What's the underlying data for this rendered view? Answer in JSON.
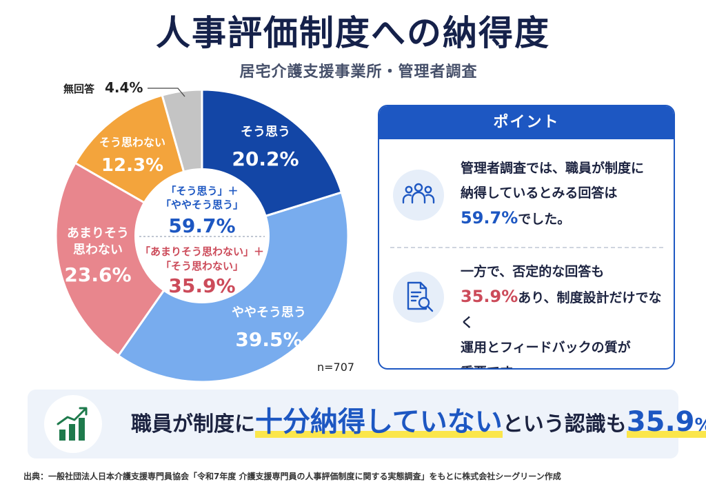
{
  "header": {
    "title": "人事評価制度への納得度",
    "subtitle": "居宅介護支援事業所・管理者調査"
  },
  "chart_data": {
    "type": "pie",
    "sample_label": "n=707",
    "series": [
      {
        "name": "そう思う",
        "value": 20.2,
        "label": "20.2%",
        "color": "#1346a6"
      },
      {
        "name": "ややそう思う",
        "value": 39.5,
        "label": "39.5%",
        "color": "#78acee"
      },
      {
        "name": "あまりそう思わない",
        "value": 23.6,
        "label": "23.6%",
        "color": "#e8868d"
      },
      {
        "name": "そう思わない",
        "value": 12.3,
        "label": "12.3%",
        "color": "#f3a43c"
      },
      {
        "name": "無回答",
        "value": 4.4,
        "label": "4.4%",
        "color": "#c4c4c4"
      }
    ],
    "slice_labels": [
      {
        "line1": "そう思う",
        "line2": "",
        "pct": "20.2%"
      },
      {
        "line1": "ややそう思う",
        "line2": "",
        "pct": "39.5%"
      },
      {
        "line1": "あまりそう",
        "line2": "思わない",
        "pct": "23.6%"
      },
      {
        "line1": "そう思わない",
        "line2": "",
        "pct": "12.3%"
      }
    ],
    "callout": {
      "label": "無回答",
      "pct": "4.4%"
    },
    "center": {
      "positive_line1": "「そう思う」＋",
      "positive_line2": "「ややそう思う」",
      "positive_pct": "59.7%",
      "negative_line1": "「あまりそう思わない」＋",
      "negative_line2": "「そう思わない」",
      "negative_pct": "35.9%"
    }
  },
  "point": {
    "header": "ポイント",
    "item1": {
      "line1": "管理者調査では、職員が制度に",
      "line2": "納得しているとみる回答は",
      "pct": "59.7%",
      "tail": "でした。"
    },
    "item2": {
      "line1": "一方で、否定的な回答も",
      "pct": "35.9%",
      "line2_rest": "あり、制度設計だけでなく",
      "line3": "運用とフィードバックの質が",
      "line4": "重要です。"
    }
  },
  "banner": {
    "pre": "職員が制度に",
    "emphasis": "十分納得していない",
    "post": "という認識も",
    "pct_num": "35.9",
    "pct_sign": "%"
  },
  "source": "出典：一般社団法人日本介護支援専門員協会「令和7年度 介護支援専門員の人事評価制度に関する実態調査」をもとに株式会社シーグリーン作成",
  "icons": {
    "people": "people-icon",
    "document_search": "document-search-icon",
    "growth_chart": "growth-chart-icon"
  },
  "colors": {
    "brand_blue": "#1d57c2",
    "negative_red": "#cc4b5a",
    "highlight_yellow": "#fbe64b",
    "growth_green": "#1e7a4c"
  }
}
